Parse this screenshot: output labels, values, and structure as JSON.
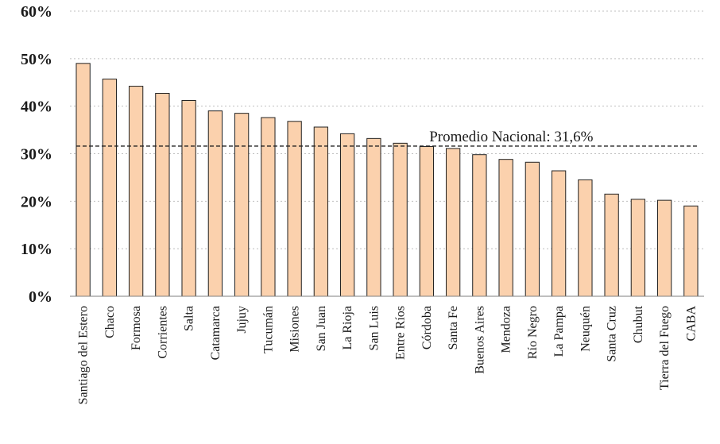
{
  "chart_data": {
    "type": "bar",
    "title": "",
    "xlabel": "",
    "ylabel": "",
    "ylim": [
      0,
      60
    ],
    "yticks": [
      "0%",
      "10%",
      "20%",
      "30%",
      "40%",
      "50%",
      "60%"
    ],
    "categories": [
      "Santiago del Estero",
      "Chaco",
      "Formosa",
      "Corrientes",
      "Salta",
      "Catamarca",
      "Jujuy",
      "Tucumán",
      "Misiones",
      "San Juan",
      "La Rioja",
      "San Luis",
      "Entre Ríos",
      "Córdoba",
      "Santa Fe",
      "Buenos Aires",
      "Mendoza",
      "Río Negro",
      "La Pampa",
      "Neuquén",
      "Santa Cruz",
      "Chubut",
      "Tierra del Fuego",
      "CABA"
    ],
    "values": [
      49.0,
      45.7,
      44.2,
      42.7,
      41.2,
      39.0,
      38.5,
      37.6,
      36.8,
      35.6,
      34.2,
      33.2,
      32.2,
      31.5,
      31.1,
      29.8,
      28.8,
      28.2,
      26.4,
      24.5,
      21.5,
      20.4,
      20.2,
      19.0
    ],
    "reference_line": {
      "value": 31.6,
      "label": "Promedio Nacional: 31,6%"
    },
    "grid": true,
    "legend": "none",
    "colors": {
      "bar_fill": "#fbd1ad",
      "bar_stroke": "#222222",
      "grid": "#bfbfbf",
      "avg_line": "#222222"
    }
  }
}
